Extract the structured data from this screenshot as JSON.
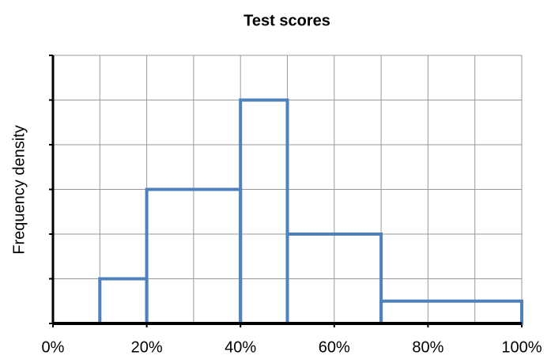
{
  "chart_data": {
    "type": "histogram",
    "title": "Test scores",
    "ylabel": "Frequency density",
    "bins": [
      10,
      20,
      40,
      50,
      70,
      100
    ],
    "values": [
      1,
      3,
      5,
      2,
      0.5
    ],
    "color": "#4f81bd",
    "xlim": [
      0,
      100
    ],
    "xticks": [
      {
        "value": 0,
        "label": "0%"
      },
      {
        "value": 20,
        "label": "20%"
      },
      {
        "value": 40,
        "label": "40%"
      },
      {
        "value": 60,
        "label": "60%"
      },
      {
        "value": 80,
        "label": "80%"
      },
      {
        "value": 100,
        "label": "100%"
      }
    ],
    "xminor_ticks": [
      10,
      30,
      50,
      70,
      90
    ],
    "ylim": [
      0,
      6
    ],
    "yticks": [
      0,
      1,
      2,
      3,
      4,
      5,
      6
    ],
    "grid": true
  }
}
